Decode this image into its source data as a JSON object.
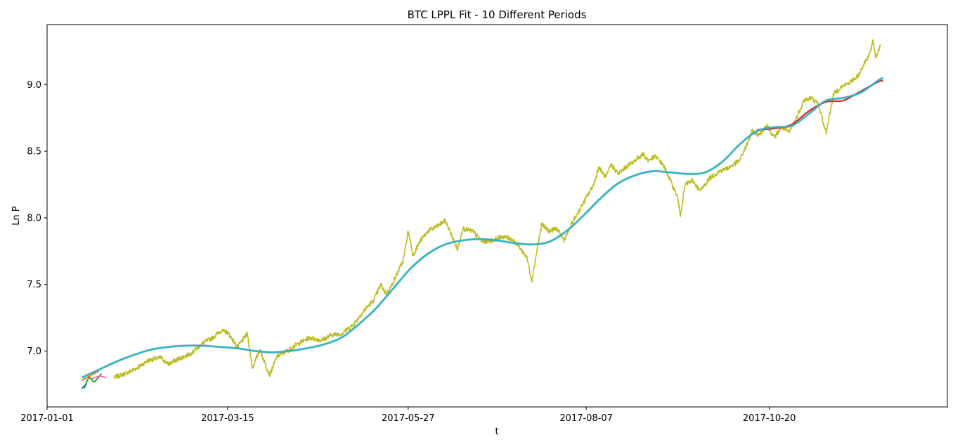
{
  "chart_data": {
    "type": "line",
    "title": "BTC LPPL Fit - 10 Different Periods",
    "xlabel": "t",
    "ylabel": "Ln P",
    "x_unit": "date",
    "xlim": [
      "2017-01-01",
      "2017-12-31"
    ],
    "ylim": [
      6.58,
      9.45
    ],
    "yticks": [
      7.0,
      7.5,
      8.0,
      8.5,
      9.0
    ],
    "ytick_labels": [
      "7.0",
      "7.5",
      "8.0",
      "8.5",
      "9.0"
    ],
    "xticks": [
      "2017-01-01",
      "2017-03-15",
      "2017-05-27",
      "2017-08-07",
      "2017-10-20"
    ],
    "grid": false,
    "legend": "none",
    "price": {
      "color": "#bcbd22",
      "points": [
        [
          "2017-01-28",
          6.8
        ],
        [
          "2017-02-03",
          6.84
        ],
        [
          "2017-02-07",
          6.88
        ],
        [
          "2017-02-11",
          6.93
        ],
        [
          "2017-02-16",
          6.95
        ],
        [
          "2017-02-19",
          6.9
        ],
        [
          "2017-02-22",
          6.93
        ],
        [
          "2017-02-28",
          6.98
        ],
        [
          "2017-03-05",
          7.06
        ],
        [
          "2017-03-09",
          7.1
        ],
        [
          "2017-03-12",
          7.15
        ],
        [
          "2017-03-15",
          7.14
        ],
        [
          "2017-03-19",
          7.03
        ],
        [
          "2017-03-23",
          7.13
        ],
        [
          "2017-03-25",
          6.87
        ],
        [
          "2017-03-28",
          7.01
        ],
        [
          "2017-04-01",
          6.82
        ],
        [
          "2017-04-04",
          6.96
        ],
        [
          "2017-04-08",
          7.0
        ],
        [
          "2017-04-12",
          7.05
        ],
        [
          "2017-04-17",
          7.1
        ],
        [
          "2017-04-22",
          7.08
        ],
        [
          "2017-04-26",
          7.12
        ],
        [
          "2017-04-30",
          7.13
        ],
        [
          "2017-05-05",
          7.2
        ],
        [
          "2017-05-09",
          7.3
        ],
        [
          "2017-05-13",
          7.38
        ],
        [
          "2017-05-16",
          7.5
        ],
        [
          "2017-05-18",
          7.43
        ],
        [
          "2017-05-20",
          7.48
        ],
        [
          "2017-05-23",
          7.6
        ],
        [
          "2017-05-25",
          7.68
        ],
        [
          "2017-05-27",
          7.9
        ],
        [
          "2017-05-29",
          7.72
        ],
        [
          "2017-06-01",
          7.83
        ],
        [
          "2017-06-04",
          7.9
        ],
        [
          "2017-06-08",
          7.94
        ],
        [
          "2017-06-11",
          7.98
        ],
        [
          "2017-06-14",
          7.85
        ],
        [
          "2017-06-16",
          7.76
        ],
        [
          "2017-06-18",
          7.92
        ],
        [
          "2017-06-22",
          7.9
        ],
        [
          "2017-06-26",
          7.82
        ],
        [
          "2017-06-30",
          7.83
        ],
        [
          "2017-07-04",
          7.86
        ],
        [
          "2017-07-08",
          7.84
        ],
        [
          "2017-07-11",
          7.78
        ],
        [
          "2017-07-14",
          7.7
        ],
        [
          "2017-07-16",
          7.53
        ],
        [
          "2017-07-18",
          7.75
        ],
        [
          "2017-07-20",
          7.95
        ],
        [
          "2017-07-23",
          7.9
        ],
        [
          "2017-07-26",
          7.92
        ],
        [
          "2017-07-29",
          7.83
        ],
        [
          "2017-08-01",
          7.95
        ],
        [
          "2017-08-04",
          8.05
        ],
        [
          "2017-08-07",
          8.15
        ],
        [
          "2017-08-10",
          8.25
        ],
        [
          "2017-08-12",
          8.38
        ],
        [
          "2017-08-15",
          8.3
        ],
        [
          "2017-08-17",
          8.4
        ],
        [
          "2017-08-20",
          8.33
        ],
        [
          "2017-08-23",
          8.38
        ],
        [
          "2017-08-26",
          8.42
        ],
        [
          "2017-08-30",
          8.48
        ],
        [
          "2017-09-01",
          8.43
        ],
        [
          "2017-09-04",
          8.46
        ],
        [
          "2017-09-07",
          8.4
        ],
        [
          "2017-09-10",
          8.28
        ],
        [
          "2017-09-13",
          8.15
        ],
        [
          "2017-09-14",
          8.02
        ],
        [
          "2017-09-16",
          8.25
        ],
        [
          "2017-09-19",
          8.28
        ],
        [
          "2017-09-22",
          8.2
        ],
        [
          "2017-09-26",
          8.3
        ],
        [
          "2017-09-30",
          8.35
        ],
        [
          "2017-10-04",
          8.38
        ],
        [
          "2017-10-08",
          8.43
        ],
        [
          "2017-10-11",
          8.55
        ],
        [
          "2017-10-13",
          8.65
        ],
        [
          "2017-10-16",
          8.62
        ],
        [
          "2017-10-19",
          8.7
        ],
        [
          "2017-10-22",
          8.6
        ],
        [
          "2017-10-25",
          8.68
        ],
        [
          "2017-10-28",
          8.64
        ],
        [
          "2017-10-31",
          8.75
        ],
        [
          "2017-11-03",
          8.88
        ],
        [
          "2017-11-06",
          8.9
        ],
        [
          "2017-11-09",
          8.85
        ],
        [
          "2017-11-11",
          8.7
        ],
        [
          "2017-11-12",
          8.64
        ],
        [
          "2017-11-15",
          8.93
        ],
        [
          "2017-11-18",
          8.98
        ],
        [
          "2017-11-22",
          9.02
        ],
        [
          "2017-11-25",
          9.07
        ],
        [
          "2017-11-28",
          9.18
        ],
        [
          "2017-11-30",
          9.25
        ],
        [
          "2017-12-01",
          9.33
        ],
        [
          "2017-12-02",
          9.2
        ],
        [
          "2017-12-04",
          9.3
        ]
      ]
    },
    "fit": {
      "color": "#17becf",
      "points": [
        [
          "2017-01-15",
          6.8
        ],
        [
          "2017-01-22",
          6.86
        ],
        [
          "2017-01-29",
          6.92
        ],
        [
          "2017-02-05",
          6.97
        ],
        [
          "2017-02-12",
          7.01
        ],
        [
          "2017-02-19",
          7.03
        ],
        [
          "2017-02-26",
          7.04
        ],
        [
          "2017-03-05",
          7.04
        ],
        [
          "2017-03-12",
          7.03
        ],
        [
          "2017-03-19",
          7.02
        ],
        [
          "2017-03-26",
          7.0
        ],
        [
          "2017-04-02",
          6.99
        ],
        [
          "2017-04-09",
          7.0
        ],
        [
          "2017-04-16",
          7.02
        ],
        [
          "2017-04-23",
          7.05
        ],
        [
          "2017-04-30",
          7.1
        ],
        [
          "2017-05-07",
          7.2
        ],
        [
          "2017-05-14",
          7.32
        ],
        [
          "2017-05-21",
          7.47
        ],
        [
          "2017-05-28",
          7.62
        ],
        [
          "2017-06-04",
          7.73
        ],
        [
          "2017-06-11",
          7.8
        ],
        [
          "2017-06-18",
          7.83
        ],
        [
          "2017-06-25",
          7.84
        ],
        [
          "2017-07-02",
          7.83
        ],
        [
          "2017-07-09",
          7.81
        ],
        [
          "2017-07-16",
          7.8
        ],
        [
          "2017-07-23",
          7.82
        ],
        [
          "2017-07-30",
          7.9
        ],
        [
          "2017-08-06",
          8.02
        ],
        [
          "2017-08-13",
          8.15
        ],
        [
          "2017-08-20",
          8.26
        ],
        [
          "2017-08-27",
          8.32
        ],
        [
          "2017-09-03",
          8.35
        ],
        [
          "2017-09-10",
          8.34
        ],
        [
          "2017-09-17",
          8.33
        ],
        [
          "2017-09-24",
          8.34
        ],
        [
          "2017-10-01",
          8.42
        ],
        [
          "2017-10-08",
          8.55
        ],
        [
          "2017-10-15",
          8.65
        ],
        [
          "2017-10-22",
          8.68
        ],
        [
          "2017-10-29",
          8.69
        ],
        [
          "2017-11-05",
          8.78
        ],
        [
          "2017-11-12",
          8.88
        ],
        [
          "2017-11-19",
          8.9
        ],
        [
          "2017-11-26",
          8.94
        ],
        [
          "2017-12-03",
          9.03
        ],
        [
          "2017-12-05",
          9.05
        ]
      ]
    },
    "fit_variant": {
      "color": "#d62728",
      "points": [
        [
          "2017-10-15",
          8.66
        ],
        [
          "2017-10-22",
          8.67
        ],
        [
          "2017-10-29",
          8.7
        ],
        [
          "2017-11-05",
          8.8
        ],
        [
          "2017-11-12",
          8.87
        ],
        [
          "2017-11-19",
          8.88
        ],
        [
          "2017-11-26",
          8.95
        ],
        [
          "2017-12-03",
          9.02
        ],
        [
          "2017-12-05",
          9.03
        ]
      ]
    },
    "early_fits": [
      {
        "color": "#ff7f0e",
        "points": [
          [
            "2017-01-15",
            6.78
          ],
          [
            "2017-01-22",
            6.85
          ]
        ]
      },
      {
        "color": "#2ca02c",
        "points": [
          [
            "2017-01-16",
            6.72
          ],
          [
            "2017-01-18",
            6.8
          ],
          [
            "2017-01-20",
            6.77
          ],
          [
            "2017-01-23",
            6.83
          ]
        ]
      },
      {
        "color": "#e377c2",
        "points": [
          [
            "2017-01-19",
            6.79
          ],
          [
            "2017-01-22",
            6.81
          ],
          [
            "2017-01-25",
            6.8
          ]
        ]
      },
      {
        "color": "#1f77b4",
        "points": [
          [
            "2017-01-15",
            6.72
          ],
          [
            "2017-01-17",
            6.75
          ]
        ]
      }
    ]
  }
}
